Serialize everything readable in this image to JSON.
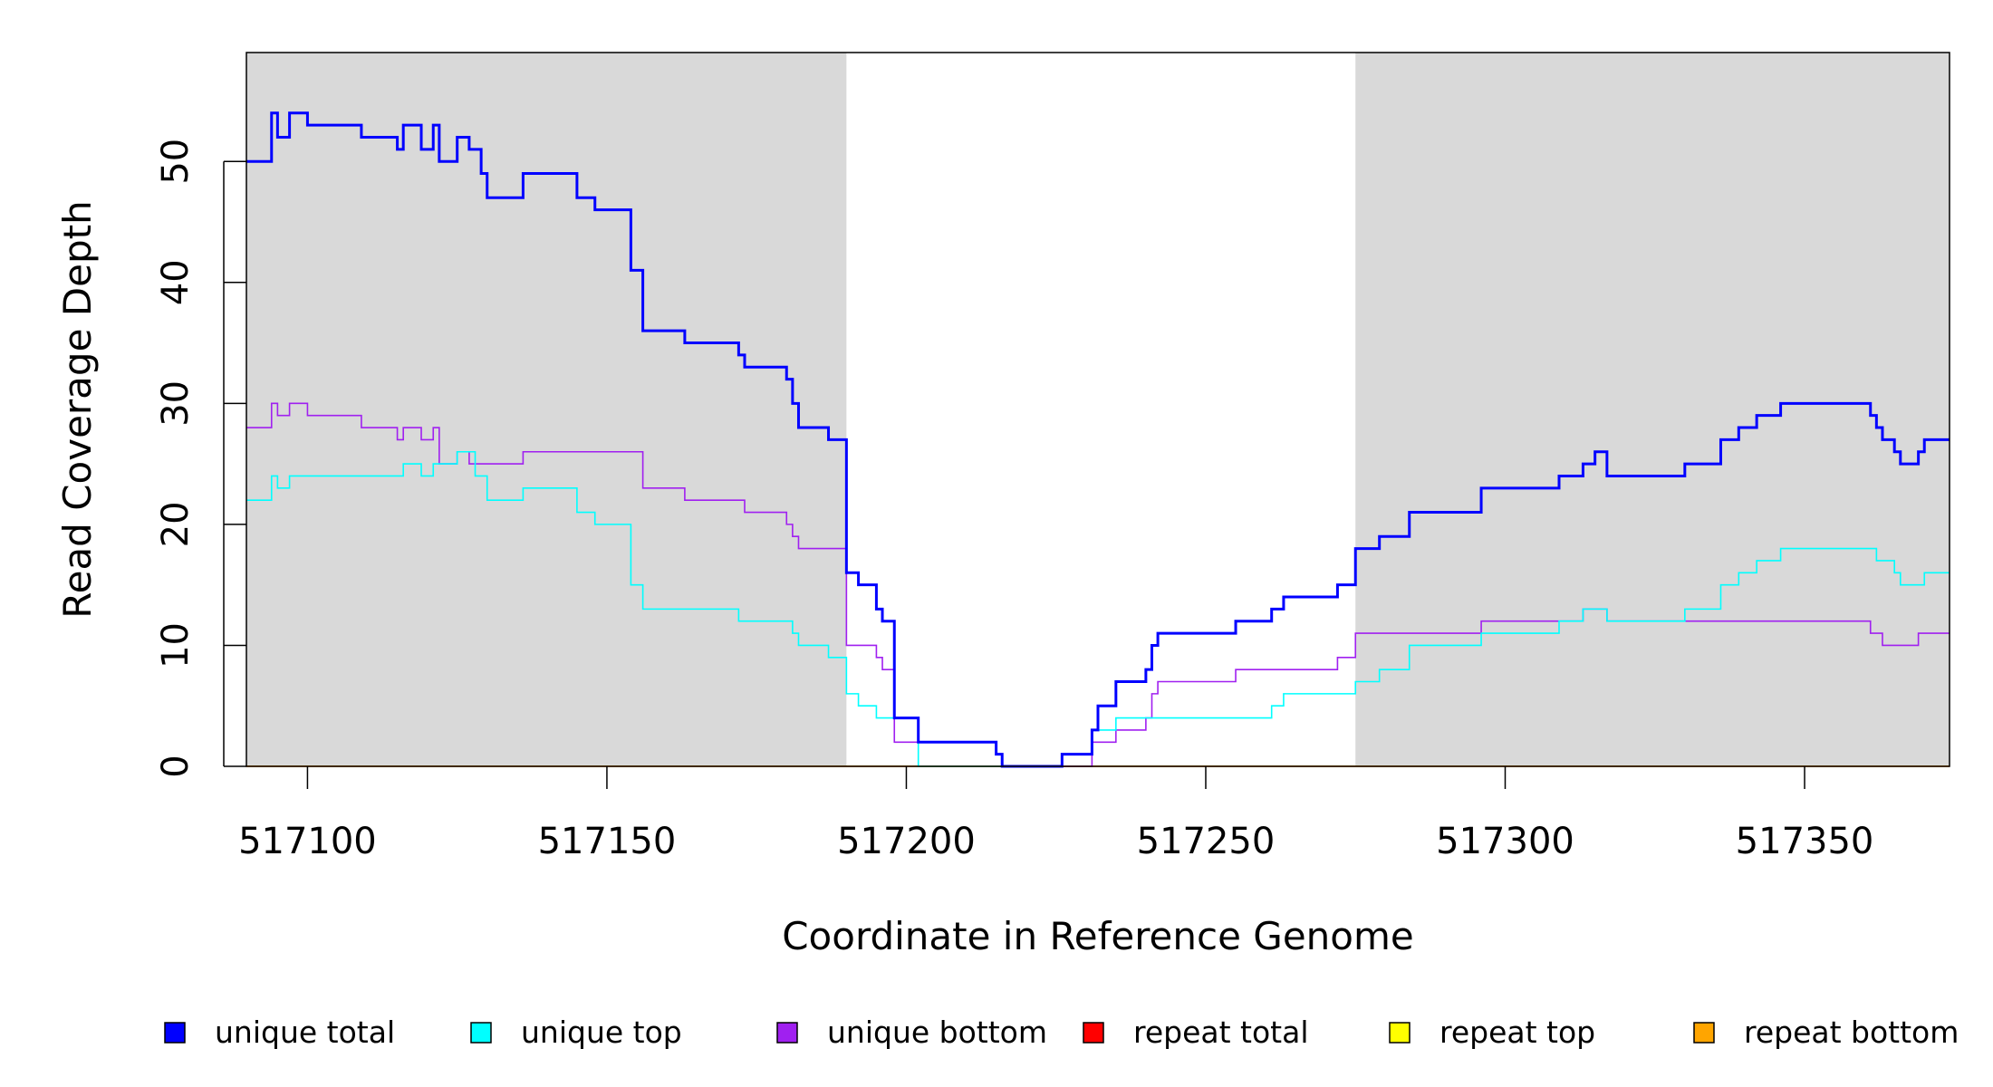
{
  "chart_data": {
    "type": "line",
    "step": true,
    "xlabel": "Coordinate in Reference Genome",
    "ylabel": "Read Coverage Depth",
    "xlim": [
      517089.8,
      517374.2
    ],
    "ylim": [
      0,
      59
    ],
    "xticks": [
      517100,
      517150,
      517200,
      517250,
      517300,
      517350
    ],
    "yticks": [
      0,
      10,
      20,
      30,
      40,
      50
    ],
    "shaded_regions": [
      [
        517089.8,
        517190
      ],
      [
        517275,
        517374.2
      ]
    ],
    "shade_color": "#d9d9d9",
    "series": [
      {
        "name": "unique total",
        "color": "#0000ff",
        "width": 3,
        "x": [
          517089.8,
          517094,
          517095,
          517097,
          517100,
          517109,
          517115,
          517116,
          517119,
          517121,
          517122,
          517125,
          517127,
          517129,
          517130,
          517136,
          517145,
          517148,
          517154,
          517156,
          517163,
          517172,
          517173,
          517180,
          517181,
          517182,
          517187,
          517190,
          517192,
          517195,
          517196,
          517198,
          517202,
          517215,
          517216,
          517226,
          517231,
          517232,
          517235,
          517240,
          517241,
          517242,
          517255,
          517261,
          517263,
          517272,
          517275,
          517279,
          517284,
          517296,
          517309,
          517313,
          517315,
          517317,
          517330,
          517336,
          517339,
          517342,
          517346,
          517361,
          517362,
          517363,
          517365,
          517366,
          517369,
          517370
        ],
        "values": [
          50,
          54,
          52,
          54,
          53,
          52,
          51,
          53,
          51,
          53,
          50,
          52,
          51,
          49,
          47,
          49,
          47,
          46,
          41,
          36,
          35,
          34,
          33,
          32,
          30,
          28,
          27,
          16,
          15,
          13,
          12,
          4,
          2,
          1,
          0,
          1,
          3,
          5,
          7,
          8,
          10,
          11,
          12,
          13,
          14,
          15,
          18,
          19,
          21,
          23,
          24,
          25,
          26,
          24,
          25,
          27,
          28,
          29,
          30,
          29,
          28,
          27,
          26,
          25,
          26,
          27
        ]
      },
      {
        "name": "unique top",
        "color": "#00ffff",
        "width": 1.6,
        "x": [
          517089.8,
          517094,
          517095,
          517097,
          517116,
          517119,
          517121,
          517125,
          517128,
          517130,
          517136,
          517145,
          517148,
          517154,
          517156,
          517172,
          517181,
          517182,
          517187,
          517190,
          517192,
          517195,
          517202,
          517226,
          517231,
          517235,
          517261,
          517263,
          517275,
          517279,
          517284,
          517296,
          517309,
          517313,
          517317,
          517330,
          517336,
          517339,
          517342,
          517346,
          517362,
          517365,
          517366,
          517370
        ],
        "values": [
          22,
          24,
          23,
          24,
          25,
          24,
          25,
          26,
          24,
          22,
          23,
          21,
          20,
          15,
          13,
          12,
          11,
          10,
          9,
          6,
          5,
          4,
          0,
          1,
          3,
          4,
          5,
          6,
          7,
          8,
          10,
          11,
          12,
          13,
          12,
          13,
          15,
          16,
          17,
          18,
          17,
          16,
          15,
          16
        ]
      },
      {
        "name": "unique bottom",
        "color": "#a020f0",
        "width": 1.6,
        "x": [
          517089.8,
          517094,
          517095,
          517097,
          517100,
          517109,
          517115,
          517116,
          517119,
          517121,
          517122,
          517125,
          517127,
          517136,
          517156,
          517163,
          517173,
          517180,
          517181,
          517182,
          517190,
          517195,
          517196,
          517198,
          517215,
          517216,
          517231,
          517235,
          517240,
          517241,
          517242,
          517255,
          517272,
          517275,
          517296,
          517313,
          517317,
          517361,
          517363,
          517369
        ],
        "values": [
          28,
          30,
          29,
          30,
          29,
          28,
          27,
          28,
          27,
          28,
          25,
          26,
          25,
          26,
          23,
          22,
          21,
          20,
          19,
          18,
          10,
          9,
          8,
          2,
          1,
          0,
          2,
          3,
          4,
          6,
          7,
          8,
          9,
          11,
          12,
          13,
          12,
          11,
          10,
          11
        ]
      },
      {
        "name": "repeat total",
        "color": "#ff0000",
        "width": 1.6,
        "x": [
          517089.8
        ],
        "values": [
          0
        ]
      },
      {
        "name": "repeat top",
        "color": "#ffff00",
        "width": 1.6,
        "x": [
          517089.8
        ],
        "values": [
          0
        ]
      },
      {
        "name": "repeat bottom",
        "color": "#ffa500",
        "width": 2,
        "x": [
          517089.8
        ],
        "values": [
          0
        ]
      }
    ],
    "legend": {
      "placement": "bottom",
      "entries": [
        "unique total",
        "unique top",
        "unique bottom",
        "repeat total",
        "repeat top",
        "repeat bottom"
      ]
    }
  }
}
